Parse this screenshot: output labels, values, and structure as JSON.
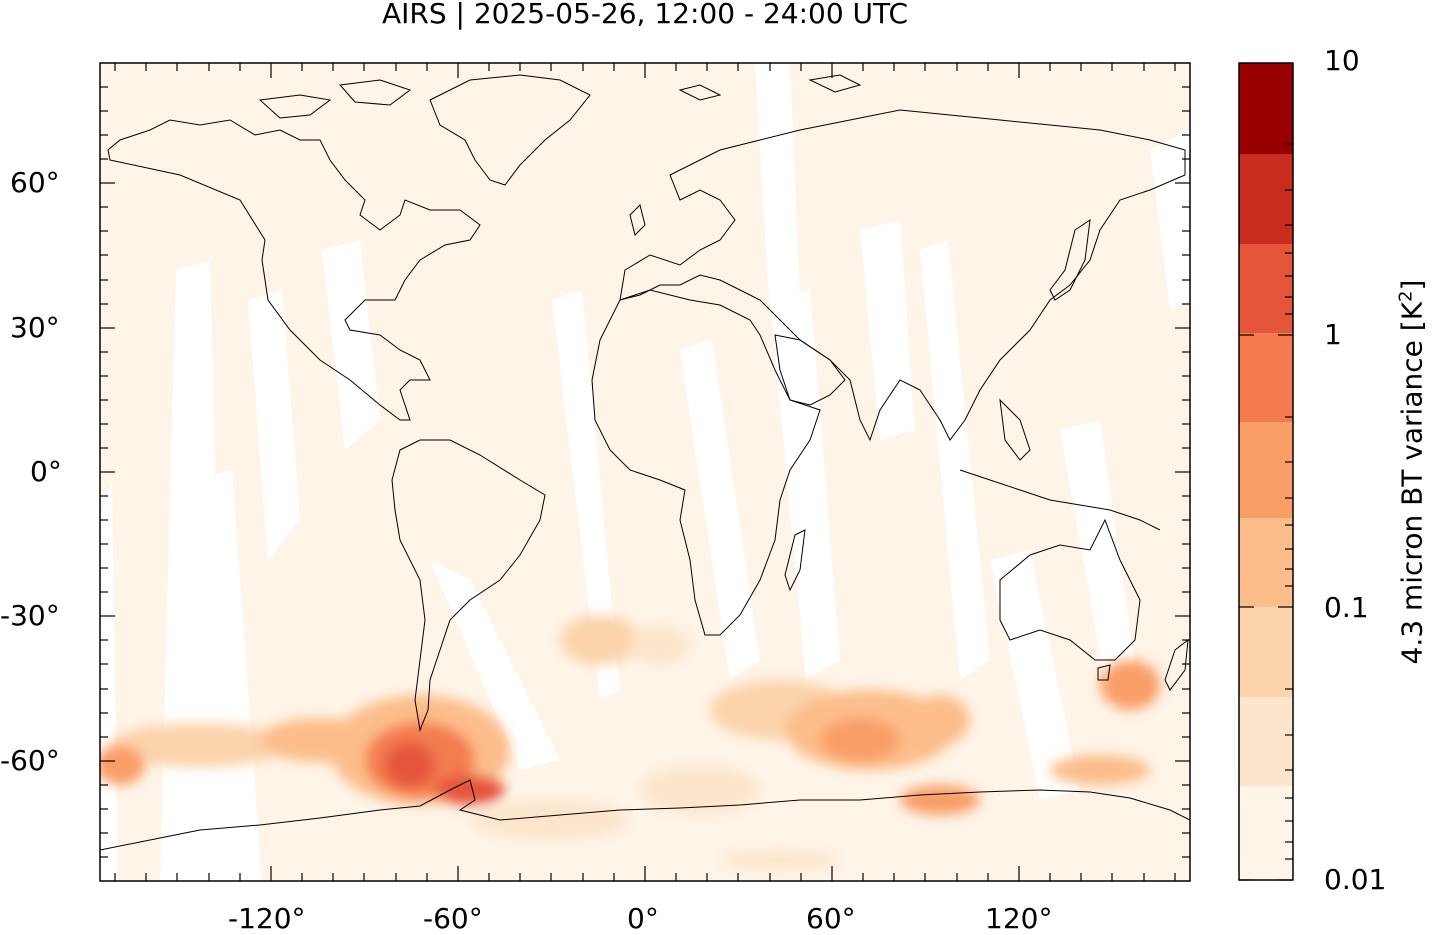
{
  "title": "AIRS | 2025-05-26, 12:00 - 24:00 UTC",
  "map": {
    "projection": "equirectangular",
    "lon_range": [
      -175,
      175
    ],
    "lat_range": [
      -85,
      85
    ],
    "background_color": "#fef4e8",
    "x_ticks": [
      "-120°",
      "-60°",
      "0°",
      "60°",
      "120°"
    ],
    "y_ticks": [
      "60°",
      "30°",
      "0°",
      "-30°",
      "-60°"
    ]
  },
  "colorbar": {
    "title": "4.3 micron BT variance [K",
    "title_superscript": "2",
    "title_suffix": "]",
    "labels": [
      "10",
      "1",
      "0.1",
      "0.01"
    ],
    "scale": "log",
    "colors": [
      "#fef4e8",
      "#fde5cc",
      "#fcd3aa",
      "#fcbd8a",
      "#fa9e68",
      "#f47b4f",
      "#e5553a",
      "#c72c1e",
      "#990000"
    ]
  }
}
